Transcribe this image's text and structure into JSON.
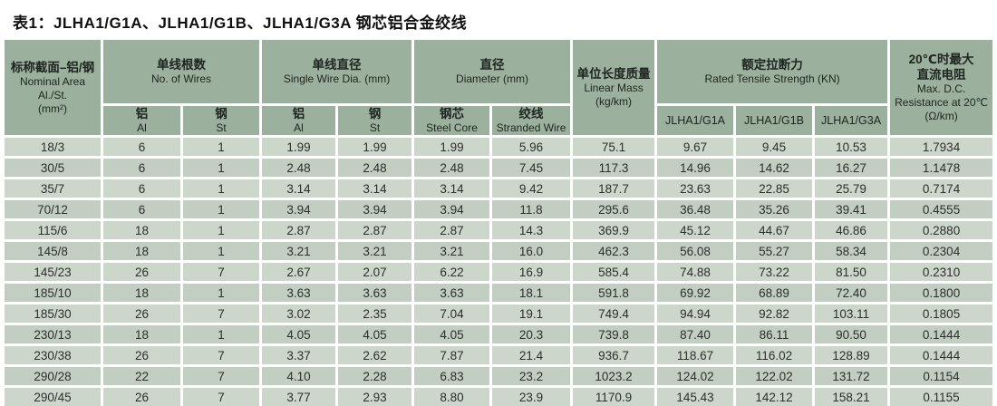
{
  "title": "表1：JLHA1/G1A、JLHA1/G1B、JLHA1/G3A 钢芯铝合金绞线",
  "colors": {
    "header_bg": "#9bb09d",
    "row_odd_bg": "#ccd6cb",
    "row_even_bg": "#c2cec2",
    "text": "#2e2e2e",
    "page_bg": "#ffffff"
  },
  "table": {
    "headers": {
      "nominal_area": {
        "zh": "标称截面–铝/钢",
        "en1": "Nominal Area",
        "en2": "Al./St.",
        "en3": "(mm²)"
      },
      "no_of_wires": {
        "zh": "单线根数",
        "en": "No. of Wires"
      },
      "single_wire_dia": {
        "zh": "单线直径",
        "en": "Single Wire Dia. (mm)"
      },
      "diameter": {
        "zh": "直径",
        "en": "Diameter (mm)"
      },
      "linear_mass": {
        "zh": "单位长度质量",
        "en1": "Linear Mass",
        "en2": "(kg/km)"
      },
      "tensile": {
        "zh": "额定拉断力",
        "en": "Rated Tensile Strength (KN)"
      },
      "resistance": {
        "zh1": "20℃时最大",
        "zh2": "直流电阻",
        "en1": "Max. D.C.",
        "en2": "Resistance at 20℃",
        "en3": "(Ω/km)"
      },
      "sub": {
        "al": {
          "zh": "铝",
          "en": "Al"
        },
        "st": {
          "zh": "钢",
          "en": "St"
        },
        "steel_core": {
          "zh": "钢芯",
          "en": "Steel Core"
        },
        "stranded_wire": {
          "zh": "绞线",
          "en": "Stranded Wire"
        },
        "g1a": "JLHA1/G1A",
        "g1b": "JLHA1/G1B",
        "g3a": "JLHA1/G3A"
      }
    },
    "rows": [
      [
        "18/3",
        "6",
        "1",
        "1.99",
        "1.99",
        "1.99",
        "5.96",
        "75.1",
        "9.67",
        "9.45",
        "10.53",
        "1.7934"
      ],
      [
        "30/5",
        "6",
        "1",
        "2.48",
        "2.48",
        "2.48",
        "7.45",
        "117.3",
        "14.96",
        "14.62",
        "16.27",
        "1.1478"
      ],
      [
        "35/7",
        "6",
        "1",
        "3.14",
        "3.14",
        "3.14",
        "9.42",
        "187.7",
        "23.63",
        "22.85",
        "25.79",
        "0.7174"
      ],
      [
        "70/12",
        "6",
        "1",
        "3.94",
        "3.94",
        "3.94",
        "11.8",
        "295.6",
        "36.48",
        "35.26",
        "39.41",
        "0.4555"
      ],
      [
        "115/6",
        "18",
        "1",
        "2.87",
        "2.87",
        "2.87",
        "14.3",
        "369.9",
        "45.12",
        "44.67",
        "46.86",
        "0.2880"
      ],
      [
        "145/8",
        "18",
        "1",
        "3.21",
        "3.21",
        "3.21",
        "16.0",
        "462.3",
        "56.08",
        "55.27",
        "58.34",
        "0.2304"
      ],
      [
        "145/23",
        "26",
        "7",
        "2.67",
        "2.07",
        "6.22",
        "16.9",
        "585.4",
        "74.88",
        "73.22",
        "81.50",
        "0.2310"
      ],
      [
        "185/10",
        "18",
        "1",
        "3.63",
        "3.63",
        "3.63",
        "18.1",
        "591.8",
        "69.92",
        "68.89",
        "72.40",
        "0.1800"
      ],
      [
        "185/30",
        "26",
        "7",
        "3.02",
        "2.35",
        "7.04",
        "19.1",
        "749.4",
        "94.94",
        "92.82",
        "103.11",
        "0.1805"
      ],
      [
        "230/13",
        "18",
        "1",
        "4.05",
        "4.05",
        "4.05",
        "20.3",
        "739.8",
        "87.40",
        "86.11",
        "90.50",
        "0.1444"
      ],
      [
        "230/38",
        "26",
        "7",
        "3.37",
        "2.62",
        "7.87",
        "21.4",
        "936.7",
        "118.67",
        "116.02",
        "128.89",
        "0.1444"
      ],
      [
        "290/28",
        "22",
        "7",
        "4.10",
        "2.28",
        "6.83",
        "23.2",
        "1023.2",
        "124.02",
        "122.02",
        "131.72",
        "0.1154"
      ],
      [
        "290/45",
        "26",
        "7",
        "3.77",
        "2.93",
        "8.80",
        "23.9",
        "1170.9",
        "145.43",
        "142.12",
        "158.21",
        "0.1155"
      ]
    ]
  }
}
